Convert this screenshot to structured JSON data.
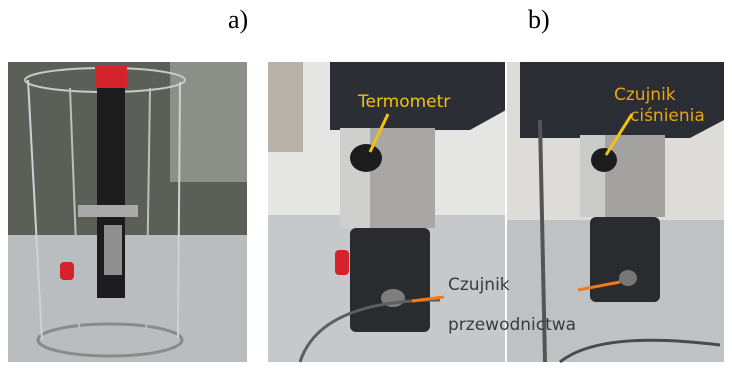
{
  "labels": {
    "a": "a)",
    "b": "b)"
  },
  "annotations": [
    {
      "lines": [
        "Termometr"
      ]
    },
    {
      "lines": [
        "Czujnik",
        "ciśnienia"
      ]
    },
    {
      "lines": [
        "Czujnik",
        "przewodnictwa"
      ]
    }
  ]
}
